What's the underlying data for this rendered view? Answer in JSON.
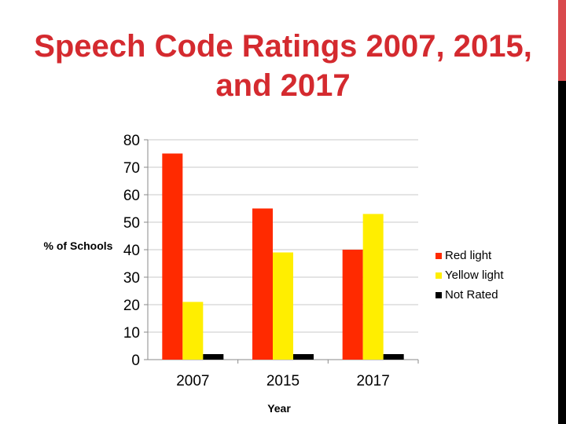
{
  "slide": {
    "title": "Speech Code Ratings 2007, 2015, and 2017",
    "accent_color": "#d42a2f",
    "sidebar_colors": [
      "#d94a4d",
      "#000000"
    ]
  },
  "chart_data": {
    "type": "bar",
    "title": "",
    "xlabel": "Year",
    "ylabel": "% of Schools",
    "categories": [
      "2007",
      "2015",
      "2017"
    ],
    "series": [
      {
        "name": "Red light",
        "color": "#ff2a00",
        "values": [
          75,
          55,
          40
        ]
      },
      {
        "name": "Yellow light",
        "color": "#ffee00",
        "values": [
          21,
          39,
          53
        ]
      },
      {
        "name": "Not Rated",
        "color": "#000000",
        "values": [
          2,
          2,
          2
        ]
      }
    ],
    "ylim": [
      0,
      80
    ],
    "yticks": [
      0,
      10,
      20,
      30,
      40,
      50,
      60,
      70,
      80
    ],
    "grid": true,
    "legend_position": "right"
  }
}
